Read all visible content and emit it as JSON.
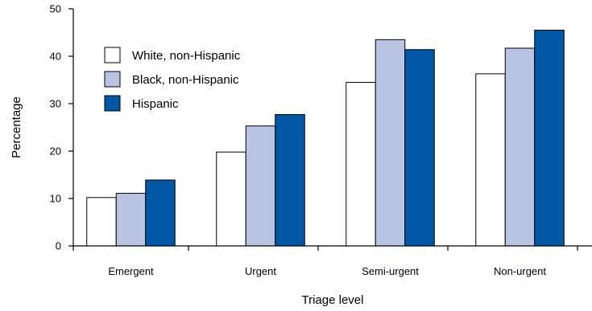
{
  "chart_data": {
    "type": "bar",
    "xlabel": "Triage level",
    "ylabel": "Percentage",
    "ylim": [
      0,
      50
    ],
    "yticks": [
      0,
      10,
      20,
      30,
      40,
      50
    ],
    "categories": [
      "Emergent",
      "Urgent",
      "Semi-urgent",
      "Non-urgent"
    ],
    "series": [
      {
        "name": "White, non-Hispanic",
        "color": "#ffffff",
        "values": [
          10.2,
          19.8,
          34.5,
          36.3
        ]
      },
      {
        "name": "Black, non-Hispanic",
        "color": "#b8c4e2",
        "values": [
          11.1,
          25.3,
          43.5,
          41.7
        ]
      },
      {
        "name": "Hispanic",
        "color": "#0057a6",
        "values": [
          13.9,
          27.7,
          41.4,
          45.5
        ]
      }
    ],
    "legend_position": "top-left",
    "grid": false
  }
}
